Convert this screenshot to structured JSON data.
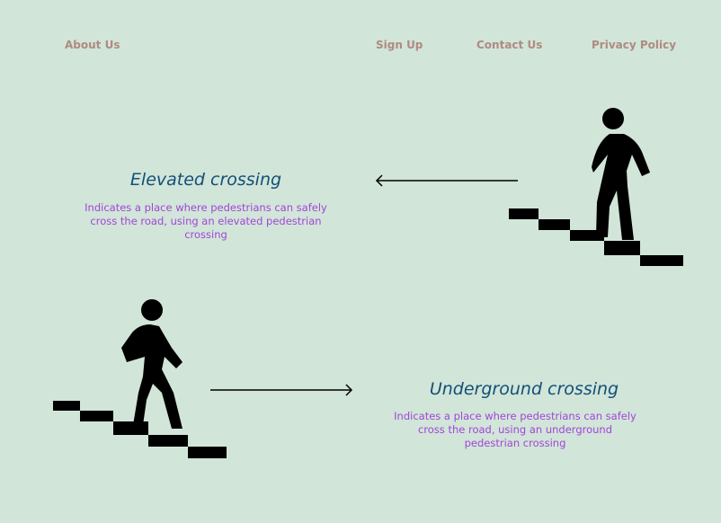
{
  "nav": {
    "about": "About Us",
    "signup": "Sign Up",
    "contact": "Contact Us",
    "privacy": "Privacy Policy"
  },
  "sections": [
    {
      "title": "Elevated crossing",
      "description": "Indicates a place where pedestrians can safely cross the road, using an elevated pedestrian crossing",
      "arrow": "left",
      "icon": "person-climbing-stairs-icon"
    },
    {
      "title": "Underground crossing",
      "description": "Indicates a place where pedestrians can safely cross the road, using an underground pedestrian crossing",
      "arrow": "right",
      "icon": "person-descending-stairs-icon"
    }
  ],
  "colors": {
    "background": "#d1e5d8",
    "nav_link": "#b08a82",
    "title": "#134f78",
    "description": "#a245d8",
    "icon": "#000000"
  }
}
